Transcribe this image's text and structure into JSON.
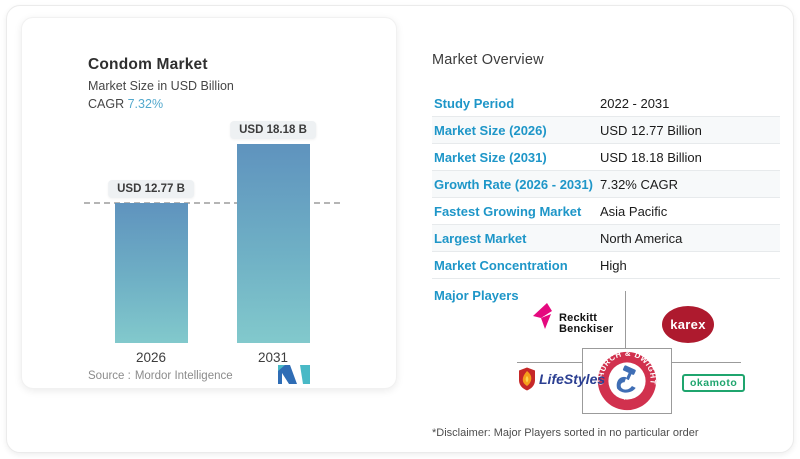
{
  "chart": {
    "title": "Condom Market",
    "subtitle": "Market Size in USD Billion",
    "cagr_label": "CAGR",
    "cagr_value": "7.32%",
    "source_label": "Source :",
    "source_value": "Mordor Intelligence"
  },
  "chart_data": {
    "type": "bar",
    "categories": [
      "2026",
      "2031"
    ],
    "values": [
      12.77,
      18.18
    ],
    "bar_labels": [
      "USD 12.77 B",
      "USD 18.18 B"
    ],
    "title": "Condom Market",
    "subtitle": "Market Size in USD Billion",
    "ylabel": "USD Billion",
    "ylim": [
      0,
      18.18
    ],
    "grid": false,
    "legend": false,
    "annotations": [
      "dashed horizontal reference line at 12.77 (2026 level)"
    ]
  },
  "overview": {
    "heading": "Market Overview",
    "rows": [
      {
        "label": "Study Period",
        "value": "2022 - 2031"
      },
      {
        "label": "Market Size (2026)",
        "value": "USD 12.77 Billion"
      },
      {
        "label": "Market Size (2031)",
        "value": "USD 18.18 Billion"
      },
      {
        "label": "Growth Rate (2026 - 2031)",
        "value": "7.32% CAGR"
      },
      {
        "label": "Fastest Growing Market",
        "value": "Asia Pacific"
      },
      {
        "label": "Largest Market",
        "value": "North America"
      },
      {
        "label": "Market Concentration",
        "value": "High"
      }
    ],
    "major_players_label": "Major Players",
    "players": [
      "Reckitt Benckiser",
      "Karex",
      "LifeStyles",
      "Church & Dwight Co., Inc.",
      "Okamoto"
    ],
    "disclaimer": "*Disclaimer: Major Players sorted in no particular order"
  },
  "logos": {
    "reckitt_line1": "Reckitt",
    "reckitt_line2": "Benckiser",
    "karex": "karex",
    "lifestyles": "LifeStyles",
    "okamoto": "okamoto",
    "cd_top": "CHURCH & DWIGHT",
    "cd_bottom": "CO., INC."
  },
  "colors": {
    "accent_blue": "#1e96c8",
    "cagr_teal": "#54a9cd",
    "bar_gradient_top": "#5f93be",
    "bar_gradient_bottom": "#82c9cc",
    "reckitt_pink": "#e5097f",
    "karex_red": "#ae1a2e",
    "church_dwight_red": "#d1314e",
    "okamoto_green": "#1fa56e",
    "lifestyles_blue": "#2b3f92"
  }
}
